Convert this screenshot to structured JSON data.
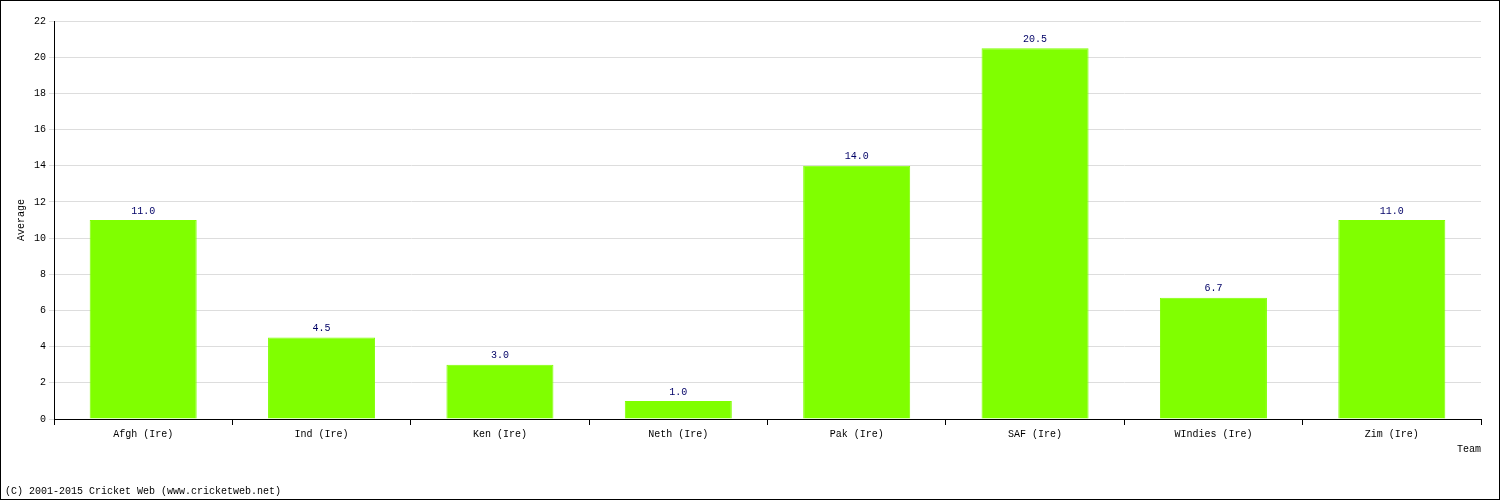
{
  "chart_data": {
    "type": "bar",
    "x_label": "Team",
    "y_label": "Average",
    "categories": [
      "Afgh (Ire)",
      "Ind (Ire)",
      "Ken (Ire)",
      "Neth (Ire)",
      "Pak (Ire)",
      "SAF (Ire)",
      "WIndies (Ire)",
      "Zim (Ire)"
    ],
    "values": [
      11.0,
      4.5,
      3.0,
      1.0,
      14.0,
      20.5,
      6.7,
      11.0
    ],
    "value_labels": [
      "11.0",
      "4.5",
      "3.0",
      "1.0",
      "14.0",
      "20.5",
      "6.7",
      "11.0"
    ],
    "color": "#80ff00",
    "ylim": [
      0,
      22
    ],
    "yticks": [
      0,
      2,
      4,
      6,
      8,
      10,
      12,
      14,
      16,
      18,
      20,
      22
    ],
    "grid": true,
    "data_labels": true,
    "annotations": [
      "(C) 2001-2015 Cricket Web (www.cricketweb.net)"
    ]
  }
}
